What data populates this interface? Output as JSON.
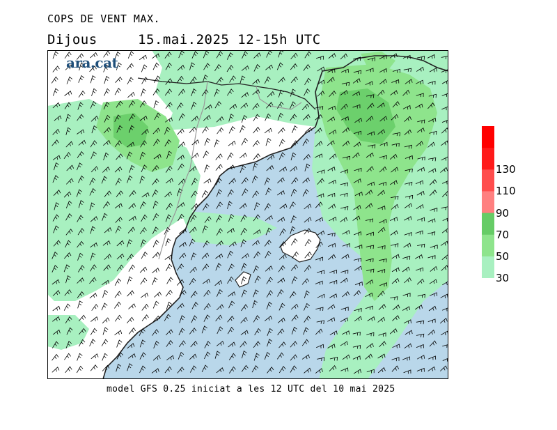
{
  "header": {
    "title": "COPS DE VENT MAX.",
    "day": "Dijous",
    "datetime": "15.mai.2025  12-15h  UTC"
  },
  "logo": "ara.cat",
  "footer": "model GFS 0.25 iniciat a les 12 UTC del 10 mai 2025",
  "legend": {
    "levels": [
      {
        "label": "30",
        "color": "#a8f0c0"
      },
      {
        "label": "50",
        "color": "#8ee48c"
      },
      {
        "label": "70",
        "color": "#66cc66"
      },
      {
        "label": "90",
        "color": "#ff8080"
      },
      {
        "label": "110",
        "color": "#ff4d4d"
      },
      {
        "label": "130",
        "color": "#ff1a1a"
      }
    ],
    "top_color": "#ff0000"
  },
  "colors": {
    "sea": "#b9d7ea",
    "land": "#ffffff",
    "wind30": "#a8f0c0",
    "wind50": "#8ee48c",
    "wind70": "#66cc66",
    "coast": "#222222",
    "border": "#aaaaaa",
    "barb": "#000000"
  }
}
